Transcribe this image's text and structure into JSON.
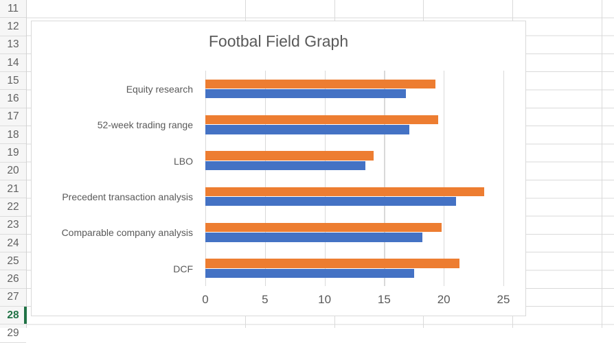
{
  "spreadsheet": {
    "row_numbers": [
      "11",
      "12",
      "13",
      "14",
      "15",
      "16",
      "17",
      "18",
      "19",
      "20",
      "21",
      "22",
      "23",
      "24",
      "25",
      "26",
      "27",
      "28",
      "29"
    ],
    "selected_row": "28",
    "selection_color": "#217346"
  },
  "chart_data": {
    "type": "bar",
    "orientation": "horizontal",
    "title": "Footbal Field Graph",
    "categories": [
      "Equity research",
      "52-week trading range",
      "LBO",
      "Precedent transaction analysis",
      "Comparable company analysis",
      "DCF"
    ],
    "series": [
      {
        "name": "orange-series",
        "color": "#ED7D31",
        "values": [
          19.3,
          19.5,
          14.1,
          23.4,
          19.8,
          21.3
        ]
      },
      {
        "name": "blue-series",
        "color": "#4472C4",
        "values": [
          16.8,
          17.1,
          13.4,
          21.0,
          18.2,
          17.5
        ]
      }
    ],
    "x_ticks": [
      "0",
      "5",
      "10",
      "15",
      "20",
      "25"
    ],
    "xlim": [
      0,
      25
    ],
    "grid": true,
    "legend": false,
    "gridline_color": "#d9d9d9",
    "text_color": "#595959"
  }
}
